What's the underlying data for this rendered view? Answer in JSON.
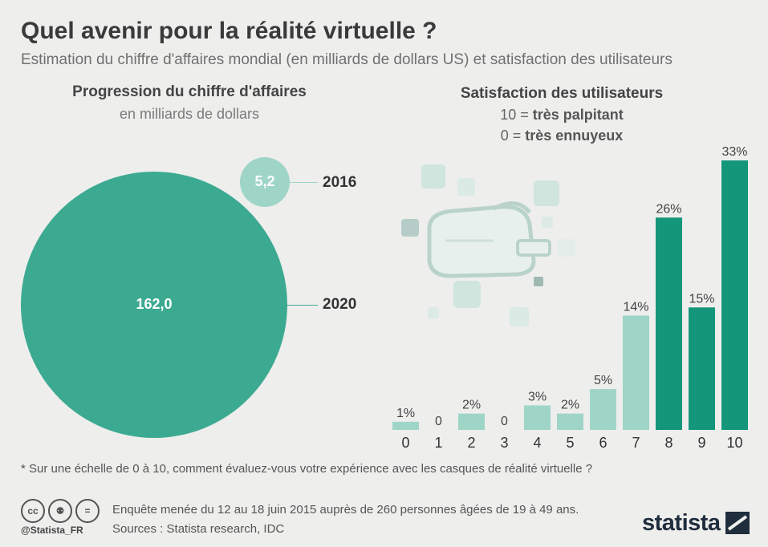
{
  "header": {
    "title": "Quel avenir pour la réalité virtuelle ?",
    "subtitle": "Estimation du chiffre d'affaires mondial (en milliards de dollars US) et satisfaction des utilisateurs"
  },
  "revenue": {
    "title": "Progression du chiffre d'affaires",
    "unit": "en milliards de dollars",
    "items": [
      {
        "year": "2016",
        "value": "5,2",
        "amount": 5.2
      },
      {
        "year": "2020",
        "value": "162,0",
        "amount": 162.0
      }
    ]
  },
  "satisfaction": {
    "title": "Satisfaction des utilisateurs",
    "scale_high": "10 = ",
    "scale_high_bold": "très palpitant",
    "scale_low": "0 = ",
    "scale_low_bold": "très ennuyeux"
  },
  "chart_data": {
    "type": "bar",
    "title": "Satisfaction des utilisateurs",
    "categories": [
      "0",
      "1",
      "2",
      "3",
      "4",
      "5",
      "6",
      "7",
      "8",
      "9",
      "10"
    ],
    "values": [
      1,
      0,
      2,
      0,
      3,
      2,
      5,
      14,
      26,
      15,
      33
    ],
    "labels": [
      "1%",
      "0",
      "2%",
      "0",
      "3%",
      "2%",
      "5%",
      "14%",
      "26%",
      "15%",
      "33%"
    ],
    "colors": {
      "low": "#9fd5c7",
      "high": "#14967a"
    },
    "highlight_from_index": 8
  },
  "footer": {
    "note": "* Sur une échelle de 0 à 10, comment évaluez-vous votre expérience avec les casques de réalité virtuelle ?",
    "survey": "Enquête menée du 12 au 18 juin 2015 auprès de 260 personnes âgées de 19 à 49 ans.",
    "sources": "Sources : Statista research, IDC",
    "handle": "@Statista_FR",
    "logo": "statista",
    "cc_icons": [
      "cc-icon",
      "by-icon",
      "nd-icon"
    ]
  }
}
